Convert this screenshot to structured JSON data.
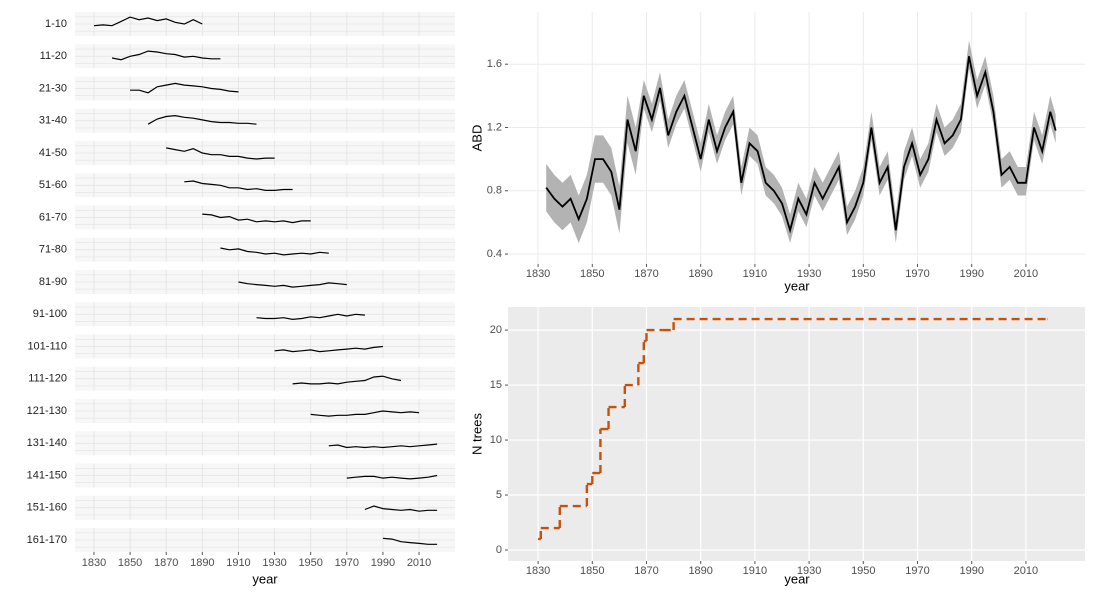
{
  "chart_data": [
    {
      "type": "line",
      "xlabel": "year",
      "color": "#000000",
      "ylim": [
        0.4,
        1.8
      ],
      "xlim": [
        1819.5,
        2029.9
      ],
      "xticks": [
        1830,
        1850,
        1870,
        1890,
        1910,
        1930,
        1950,
        1970,
        1990,
        2010
      ],
      "series": [
        {
          "name": "1-10",
          "x": [
            1830,
            1835,
            1840,
            1845,
            1850,
            1855,
            1860,
            1865,
            1870,
            1875,
            1880,
            1885,
            1890
          ],
          "values": [
            1.0,
            1.05,
            1.0,
            1.25,
            1.5,
            1.35,
            1.45,
            1.3,
            1.4,
            1.2,
            1.1,
            1.35,
            1.1
          ]
        },
        {
          "name": "11-20",
          "x": [
            1840,
            1845,
            1850,
            1855,
            1860,
            1865,
            1870,
            1875,
            1880,
            1885,
            1890,
            1895,
            1900
          ],
          "values": [
            1.0,
            0.9,
            1.1,
            1.2,
            1.4,
            1.35,
            1.25,
            1.2,
            1.05,
            1.1,
            1.0,
            0.95,
            0.95
          ]
        },
        {
          "name": "21-30",
          "x": [
            1850,
            1855,
            1860,
            1865,
            1870,
            1875,
            1880,
            1885,
            1890,
            1895,
            1900,
            1905,
            1910
          ],
          "values": [
            1.0,
            1.0,
            0.85,
            1.2,
            1.3,
            1.4,
            1.3,
            1.25,
            1.2,
            1.1,
            1.05,
            0.95,
            0.9
          ]
        },
        {
          "name": "31-40",
          "x": [
            1860,
            1865,
            1870,
            1875,
            1880,
            1885,
            1890,
            1895,
            1900,
            1905,
            1910,
            1915,
            1920
          ],
          "values": [
            0.9,
            1.2,
            1.35,
            1.4,
            1.3,
            1.25,
            1.15,
            1.05,
            1.0,
            1.0,
            0.95,
            0.95,
            0.9
          ]
        },
        {
          "name": "41-50",
          "x": [
            1870,
            1875,
            1880,
            1885,
            1890,
            1895,
            1900,
            1905,
            1910,
            1915,
            1920,
            1925,
            1930
          ],
          "values": [
            1.4,
            1.3,
            1.2,
            1.35,
            1.1,
            1.0,
            1.0,
            0.9,
            0.9,
            0.8,
            0.75,
            0.8,
            0.8
          ]
        },
        {
          "name": "51-60",
          "x": [
            1880,
            1885,
            1890,
            1895,
            1900,
            1905,
            1910,
            1915,
            1920,
            1925,
            1930,
            1935,
            1940
          ],
          "values": [
            1.3,
            1.35,
            1.2,
            1.15,
            1.1,
            0.95,
            0.95,
            0.85,
            0.9,
            0.8,
            0.8,
            0.85,
            0.85
          ]
        },
        {
          "name": "61-70",
          "x": [
            1890,
            1895,
            1900,
            1905,
            1910,
            1915,
            1920,
            1925,
            1930,
            1935,
            1940,
            1945,
            1950
          ],
          "values": [
            1.3,
            1.25,
            1.1,
            1.15,
            0.95,
            1.0,
            0.85,
            0.9,
            0.85,
            0.9,
            0.8,
            0.9,
            0.9
          ]
        },
        {
          "name": "71-80",
          "x": [
            1900,
            1905,
            1910,
            1915,
            1920,
            1925,
            1930,
            1935,
            1940,
            1945,
            1950,
            1955,
            1960
          ],
          "values": [
            1.2,
            1.1,
            1.15,
            1.0,
            0.95,
            0.85,
            0.9,
            0.8,
            0.85,
            0.9,
            0.85,
            0.95,
            0.9
          ]
        },
        {
          "name": "81-90",
          "x": [
            1910,
            1915,
            1920,
            1925,
            1930,
            1935,
            1940,
            1945,
            1950,
            1955,
            1960,
            1965,
            1970
          ],
          "values": [
            1.1,
            1.0,
            0.95,
            0.9,
            0.85,
            0.9,
            0.8,
            0.85,
            0.9,
            0.95,
            1.05,
            1.0,
            0.95
          ]
        },
        {
          "name": "91-100",
          "x": [
            1920,
            1925,
            1930,
            1935,
            1940,
            1945,
            1950,
            1955,
            1960,
            1965,
            1970,
            1975,
            1980
          ],
          "values": [
            0.9,
            0.85,
            0.85,
            0.9,
            0.8,
            0.85,
            0.95,
            0.9,
            1.0,
            1.1,
            1.0,
            1.1,
            1.05
          ]
        },
        {
          "name": "101-110",
          "x": [
            1930,
            1935,
            1940,
            1945,
            1950,
            1955,
            1960,
            1965,
            1970,
            1975,
            1980,
            1985,
            1990
          ],
          "values": [
            0.85,
            0.9,
            0.8,
            0.85,
            0.9,
            0.8,
            0.85,
            0.9,
            0.95,
            1.0,
            0.95,
            1.05,
            1.1
          ]
        },
        {
          "name": "111-120",
          "x": [
            1940,
            1945,
            1950,
            1955,
            1960,
            1965,
            1970,
            1975,
            1980,
            1985,
            1990,
            1995,
            2000
          ],
          "values": [
            0.8,
            0.85,
            0.8,
            0.8,
            0.85,
            0.8,
            0.9,
            0.95,
            1.0,
            1.2,
            1.25,
            1.1,
            1.0
          ]
        },
        {
          "name": "121-130",
          "x": [
            1950,
            1955,
            1960,
            1965,
            1970,
            1975,
            1980,
            1985,
            1990,
            1995,
            2000,
            2005,
            2010
          ],
          "values": [
            0.9,
            0.85,
            0.8,
            0.85,
            0.85,
            0.9,
            0.9,
            1.0,
            1.1,
            1.05,
            1.0,
            1.05,
            1.0
          ]
        },
        {
          "name": "131-140",
          "x": [
            1960,
            1965,
            1970,
            1975,
            1980,
            1985,
            1990,
            1995,
            2000,
            2005,
            2010,
            2015,
            2020
          ],
          "values": [
            0.95,
            1.0,
            0.85,
            0.9,
            0.85,
            0.9,
            0.85,
            0.9,
            0.95,
            0.9,
            0.95,
            1.0,
            1.05
          ]
        },
        {
          "name": "141-150",
          "x": [
            1970,
            1975,
            1980,
            1985,
            1990,
            1995,
            2000,
            2005,
            2010,
            2015,
            2020
          ],
          "values": [
            0.95,
            1.0,
            1.05,
            1.05,
            0.95,
            1.0,
            0.95,
            0.9,
            0.95,
            1.0,
            1.1
          ]
        },
        {
          "name": "151-160",
          "x": [
            1980,
            1985,
            1990,
            1995,
            2000,
            2005,
            2010,
            2015,
            2020
          ],
          "values": [
            1.0,
            1.2,
            1.05,
            1.0,
            0.95,
            1.0,
            0.9,
            0.95,
            0.95
          ]
        },
        {
          "name": "161-170",
          "x": [
            1990,
            1995,
            2000,
            2005,
            2010,
            2015,
            2020
          ],
          "values": [
            1.2,
            1.15,
            1.0,
            0.95,
            0.9,
            0.85,
            0.85
          ]
        }
      ]
    },
    {
      "type": "line",
      "xlabel": "year",
      "ylabel": "ABD",
      "color": "#000000",
      "band_color": "#b3b3b3",
      "xlim": [
        1818.9,
        2031.8
      ],
      "ylim": [
        0.337,
        1.93
      ],
      "xticks": [
        1830,
        1850,
        1870,
        1890,
        1910,
        1930,
        1950,
        1970,
        1990,
        2010
      ],
      "yticks": [
        0.4,
        0.8,
        1.2,
        1.6
      ],
      "x": [
        1833,
        1836,
        1839,
        1842,
        1845,
        1848,
        1851,
        1854,
        1857,
        1860,
        1863,
        1866,
        1869,
        1872,
        1875,
        1878,
        1881,
        1884,
        1887,
        1890,
        1893,
        1896,
        1899,
        1902,
        1905,
        1908,
        1911,
        1914,
        1917,
        1920,
        1923,
        1926,
        1929,
        1932,
        1935,
        1938,
        1941,
        1944,
        1947,
        1950,
        1953,
        1956,
        1959,
        1962,
        1965,
        1968,
        1971,
        1974,
        1977,
        1980,
        1983,
        1986,
        1989,
        1992,
        1995,
        1998,
        2001,
        2004,
        2007,
        2010,
        2013,
        2016,
        2019,
        2021
      ],
      "values": [
        0.82,
        0.75,
        0.7,
        0.75,
        0.62,
        0.75,
        1.0,
        1.0,
        0.92,
        0.68,
        1.25,
        1.05,
        1.4,
        1.25,
        1.45,
        1.15,
        1.3,
        1.4,
        1.2,
        1.0,
        1.25,
        1.05,
        1.2,
        1.3,
        0.85,
        1.1,
        1.05,
        0.85,
        0.8,
        0.72,
        0.55,
        0.75,
        0.65,
        0.85,
        0.75,
        0.85,
        0.95,
        0.6,
        0.7,
        0.85,
        1.2,
        0.85,
        0.95,
        0.55,
        0.95,
        1.1,
        0.9,
        1.0,
        1.25,
        1.1,
        1.15,
        1.25,
        1.65,
        1.4,
        1.55,
        1.3,
        0.9,
        0.95,
        0.85,
        0.85,
        1.2,
        1.05,
        1.3,
        1.18
      ],
      "lower": [
        0.67,
        0.6,
        0.55,
        0.6,
        0.47,
        0.6,
        0.85,
        0.85,
        0.77,
        0.53,
        1.1,
        0.9,
        1.32,
        1.17,
        1.37,
        1.07,
        1.22,
        1.32,
        1.12,
        0.92,
        1.17,
        0.97,
        1.12,
        1.22,
        0.77,
        1.02,
        0.97,
        0.77,
        0.72,
        0.64,
        0.47,
        0.67,
        0.57,
        0.77,
        0.67,
        0.77,
        0.87,
        0.52,
        0.62,
        0.77,
        1.12,
        0.77,
        0.87,
        0.47,
        0.87,
        1.02,
        0.82,
        0.92,
        1.17,
        1.02,
        1.07,
        1.17,
        1.57,
        1.32,
        1.47,
        1.22,
        0.82,
        0.87,
        0.77,
        0.77,
        1.12,
        0.97,
        1.22,
        1.1
      ],
      "upper": [
        0.97,
        0.9,
        0.85,
        0.9,
        0.77,
        0.9,
        1.15,
        1.15,
        1.07,
        0.83,
        1.4,
        1.2,
        1.5,
        1.35,
        1.55,
        1.25,
        1.4,
        1.5,
        1.3,
        1.1,
        1.35,
        1.15,
        1.3,
        1.4,
        0.95,
        1.2,
        1.15,
        0.95,
        0.9,
        0.82,
        0.65,
        0.85,
        0.75,
        0.95,
        0.85,
        0.95,
        1.05,
        0.7,
        0.8,
        0.95,
        1.3,
        0.95,
        1.05,
        0.65,
        1.05,
        1.2,
        1.0,
        1.1,
        1.35,
        1.2,
        1.25,
        1.35,
        1.75,
        1.5,
        1.65,
        1.4,
        1.0,
        1.05,
        0.95,
        0.95,
        1.3,
        1.15,
        1.4,
        1.28
      ]
    },
    {
      "type": "step",
      "xlabel": "year",
      "ylabel": "N trees",
      "color": "#c8500a",
      "dashed": true,
      "xlim": [
        1818.9,
        2031.8
      ],
      "ylim": [
        -1,
        22.1
      ],
      "xticks": [
        1830,
        1850,
        1870,
        1890,
        1910,
        1930,
        1950,
        1970,
        1990,
        2010
      ],
      "yticks": [
        0,
        5,
        10,
        15,
        20
      ],
      "x": [
        1830,
        1831,
        1838,
        1848,
        1850,
        1853,
        1856,
        1862,
        1867,
        1869,
        1870,
        1876,
        1880,
        2018
      ],
      "values": [
        1,
        2,
        4,
        6,
        7,
        11,
        13,
        15,
        17,
        19,
        20,
        20,
        21,
        21
      ]
    }
  ]
}
